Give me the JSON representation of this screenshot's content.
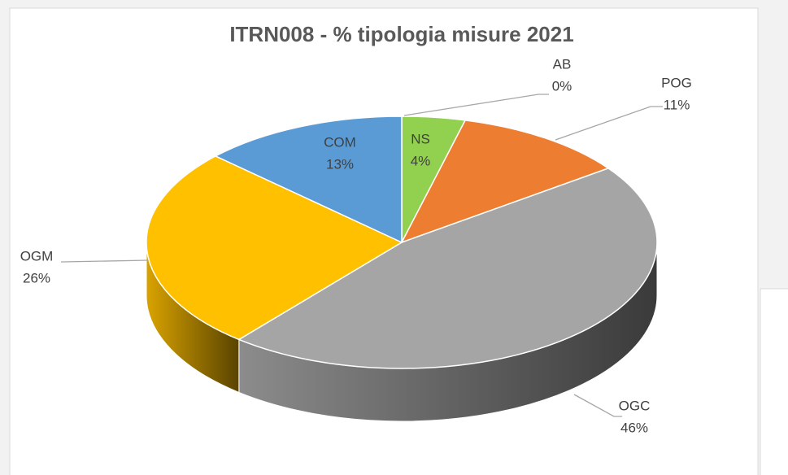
{
  "chart_data": {
    "type": "pie",
    "title": "ITRN008 - % tipologia misure 2021",
    "categories": [
      "AB",
      "NS",
      "POG",
      "OGC",
      "OGM",
      "COM"
    ],
    "values": [
      0,
      4,
      11,
      46,
      26,
      13
    ],
    "value_labels": [
      "0%",
      "4%",
      "11%",
      "46%",
      "26%",
      "13%"
    ],
    "colors": [
      "#4472c4",
      "#92d050",
      "#ed7d31",
      "#a5a5a5",
      "#ffc000",
      "#5b9bd5"
    ],
    "three_d": true
  }
}
